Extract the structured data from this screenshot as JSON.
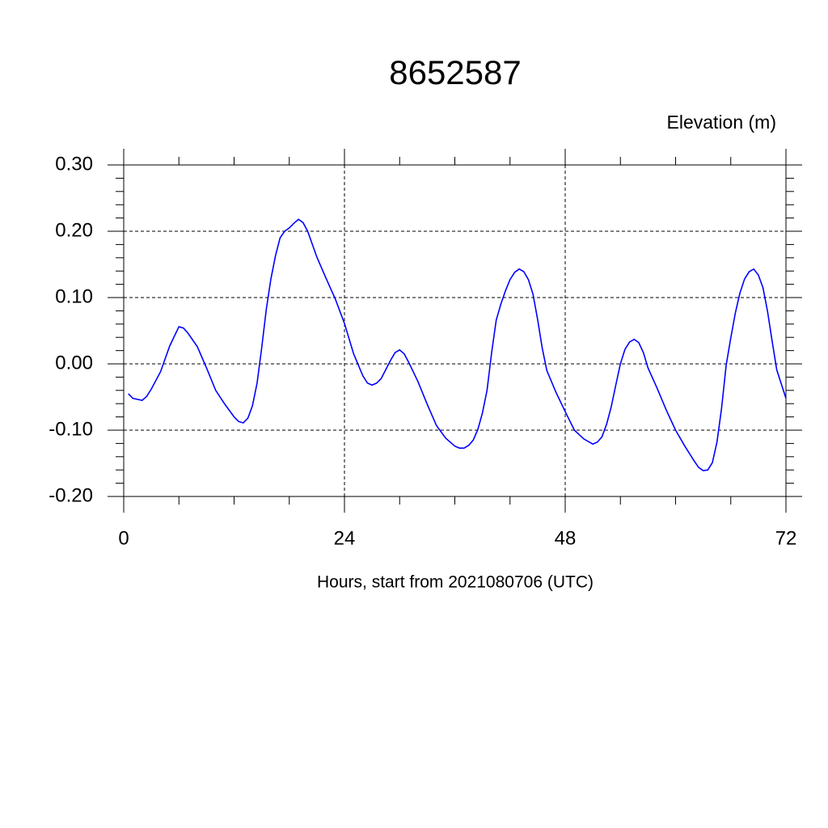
{
  "chart_data": {
    "type": "line",
    "title": "8652587",
    "subtitle": "Elevation (m)",
    "xlabel": "Hours, start from 2021080706 (UTC)",
    "xlim": [
      0,
      72
    ],
    "xticks": [
      0,
      24,
      48,
      72
    ],
    "xminor_step": 6,
    "ylim": [
      -0.2,
      0.3
    ],
    "yticks": [
      {
        "value": -0.2,
        "label": "-0.20"
      },
      {
        "value": -0.1,
        "label": "-0.10"
      },
      {
        "value": 0,
        "label": "0.00"
      },
      {
        "value": 0.1,
        "label": "0.10"
      },
      {
        "value": 0.2,
        "label": "0.20"
      },
      {
        "value": 0.3,
        "label": "0.30"
      }
    ],
    "yminor_step": 0.02,
    "grid": true,
    "x": [
      0.5,
      1,
      2,
      2.5,
      3,
      4,
      5,
      6,
      6.5,
      7,
      8,
      9,
      10,
      11,
      12,
      12.5,
      13,
      13.5,
      14,
      14.5,
      15,
      15.5,
      16,
      16.5,
      17,
      17.5,
      18,
      18.5,
      19,
      19.5,
      20,
      21,
      22,
      23,
      24,
      25,
      26,
      26.5,
      27,
      27.5,
      28,
      29,
      29.5,
      30,
      30.5,
      31,
      32,
      33,
      34,
      35,
      36,
      36.5,
      37,
      37.5,
      38,
      38.5,
      39,
      39.5,
      40,
      40.5,
      41,
      41.5,
      42,
      42.5,
      43,
      43.5,
      44,
      44.5,
      45,
      45.5,
      46,
      47,
      48,
      49,
      50,
      51,
      51.5,
      52,
      52.5,
      53,
      53.5,
      54,
      54.5,
      55,
      55.5,
      56,
      56.5,
      57,
      58,
      59,
      60,
      61,
      62,
      62.5,
      63,
      63.5,
      64,
      64.5,
      65,
      65.5,
      66,
      66.5,
      67,
      67.5,
      68,
      68.5,
      69,
      69.5,
      70,
      70.5,
      71,
      72
    ],
    "series": [
      {
        "color": "#0000ff",
        "values": [
          -0.045,
          -0.052,
          -0.055,
          -0.049,
          -0.038,
          -0.012,
          0.027,
          0.056,
          0.054,
          0.046,
          0.026,
          -0.006,
          -0.04,
          -0.061,
          -0.08,
          -0.087,
          -0.089,
          -0.082,
          -0.063,
          -0.029,
          0.024,
          0.082,
          0.128,
          0.163,
          0.19,
          0.2,
          0.205,
          0.212,
          0.218,
          0.213,
          0.2,
          0.161,
          0.129,
          0.098,
          0.061,
          0.015,
          -0.018,
          -0.029,
          -0.032,
          -0.029,
          -0.022,
          0.005,
          0.017,
          0.021,
          0.015,
          0.002,
          -0.027,
          -0.061,
          -0.093,
          -0.112,
          -0.124,
          -0.127,
          -0.127,
          -0.123,
          -0.115,
          -0.099,
          -0.074,
          -0.04,
          0.017,
          0.066,
          0.09,
          0.11,
          0.127,
          0.138,
          0.143,
          0.139,
          0.127,
          0.105,
          0.067,
          0.024,
          -0.01,
          -0.043,
          -0.072,
          -0.1,
          -0.113,
          -0.121,
          -0.118,
          -0.11,
          -0.091,
          -0.065,
          -0.032,
          0.0,
          0.022,
          0.033,
          0.037,
          0.032,
          0.017,
          -0.006,
          -0.037,
          -0.07,
          -0.1,
          -0.124,
          -0.146,
          -0.156,
          -0.161,
          -0.16,
          -0.149,
          -0.118,
          -0.067,
          -0.002,
          0.039,
          0.077,
          0.107,
          0.128,
          0.139,
          0.143,
          0.134,
          0.115,
          0.079,
          0.034,
          -0.009,
          -0.052
        ]
      }
    ]
  }
}
